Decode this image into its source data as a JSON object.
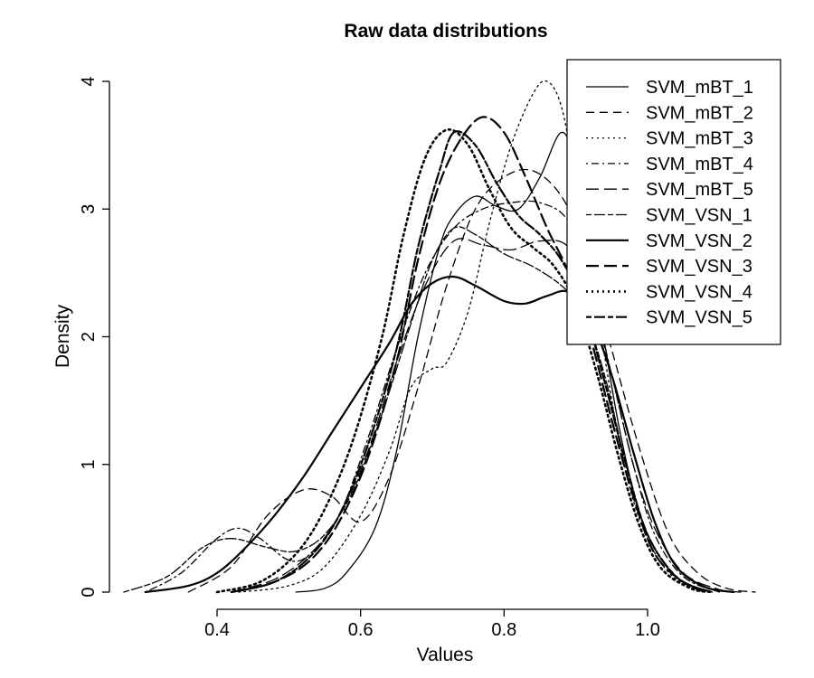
{
  "chart_data": {
    "type": "line",
    "title": "Raw data distributions",
    "xlabel": "Values",
    "ylabel": "Density",
    "xlim": [
      0.25,
      1.15
    ],
    "ylim": [
      0,
      4
    ],
    "x_ticks": [
      0.4,
      0.6,
      0.8,
      1.0
    ],
    "x_tick_labels": [
      "0.4",
      "0.6",
      "0.8",
      "1.0"
    ],
    "y_ticks": [
      0,
      1,
      2,
      3,
      4
    ],
    "y_tick_labels": [
      "0",
      "1",
      "2",
      "3",
      "4"
    ],
    "grid": false,
    "legend_position": "top-right",
    "series": [
      {
        "name": "SVM_mBT_1",
        "style": "solid",
        "width": 1.3,
        "points": [
          [
            0.51,
            0
          ],
          [
            0.55,
            0.03
          ],
          [
            0.58,
            0.15
          ],
          [
            0.62,
            0.5
          ],
          [
            0.65,
            1.1
          ],
          [
            0.68,
            2.0
          ],
          [
            0.71,
            2.7
          ],
          [
            0.73,
            2.95
          ],
          [
            0.76,
            3.1
          ],
          [
            0.79,
            3.02
          ],
          [
            0.82,
            3.0
          ],
          [
            0.85,
            3.25
          ],
          [
            0.88,
            3.6
          ],
          [
            0.9,
            3.3
          ],
          [
            0.93,
            2.3
          ],
          [
            0.96,
            1.3
          ],
          [
            0.99,
            0.6
          ],
          [
            1.02,
            0.25
          ],
          [
            1.05,
            0.08
          ],
          [
            1.09,
            0
          ]
        ]
      },
      {
        "name": "SVM_mBT_2",
        "style": "dashed",
        "width": 1.3,
        "points": [
          [
            0.36,
            0
          ],
          [
            0.42,
            0.2
          ],
          [
            0.47,
            0.6
          ],
          [
            0.52,
            0.8
          ],
          [
            0.56,
            0.75
          ],
          [
            0.6,
            0.55
          ],
          [
            0.64,
            0.9
          ],
          [
            0.68,
            1.6
          ],
          [
            0.72,
            2.4
          ],
          [
            0.76,
            3.0
          ],
          [
            0.8,
            3.25
          ],
          [
            0.84,
            3.3
          ],
          [
            0.88,
            3.1
          ],
          [
            0.91,
            2.7
          ],
          [
            0.95,
            1.9
          ],
          [
            0.99,
            1.1
          ],
          [
            1.03,
            0.45
          ],
          [
            1.07,
            0.15
          ],
          [
            1.11,
            0.03
          ],
          [
            1.15,
            0
          ]
        ]
      },
      {
        "name": "SVM_mBT_3",
        "style": "dotted",
        "width": 1.3,
        "points": [
          [
            0.43,
            0
          ],
          [
            0.5,
            0.05
          ],
          [
            0.55,
            0.2
          ],
          [
            0.6,
            0.6
          ],
          [
            0.64,
            1.1
          ],
          [
            0.67,
            1.6
          ],
          [
            0.7,
            1.75
          ],
          [
            0.72,
            1.8
          ],
          [
            0.75,
            2.2
          ],
          [
            0.78,
            2.9
          ],
          [
            0.81,
            3.5
          ],
          [
            0.84,
            3.9
          ],
          [
            0.86,
            4.0
          ],
          [
            0.88,
            3.8
          ],
          [
            0.9,
            3.2
          ],
          [
            0.93,
            2.2
          ],
          [
            0.96,
            1.2
          ],
          [
            0.99,
            0.55
          ],
          [
            1.03,
            0.15
          ],
          [
            1.08,
            0
          ]
        ]
      },
      {
        "name": "SVM_mBT_4",
        "style": "dotdash",
        "width": 1.3,
        "points": [
          [
            0.3,
            0
          ],
          [
            0.35,
            0.15
          ],
          [
            0.4,
            0.42
          ],
          [
            0.43,
            0.5
          ],
          [
            0.46,
            0.42
          ],
          [
            0.5,
            0.25
          ],
          [
            0.53,
            0.3
          ],
          [
            0.57,
            0.6
          ],
          [
            0.61,
            1.2
          ],
          [
            0.65,
            1.9
          ],
          [
            0.69,
            2.5
          ],
          [
            0.73,
            2.85
          ],
          [
            0.77,
            3.0
          ],
          [
            0.81,
            3.05
          ],
          [
            0.85,
            3.05
          ],
          [
            0.89,
            2.9
          ],
          [
            0.92,
            2.4
          ],
          [
            0.95,
            1.7
          ],
          [
            0.98,
            1.0
          ],
          [
            1.01,
            0.45
          ],
          [
            1.05,
            0.12
          ],
          [
            1.1,
            0
          ]
        ]
      },
      {
        "name": "SVM_mBT_5",
        "style": "longdash",
        "width": 1.3,
        "points": [
          [
            0.42,
            0
          ],
          [
            0.48,
            0.1
          ],
          [
            0.53,
            0.3
          ],
          [
            0.57,
            0.6
          ],
          [
            0.61,
            1.1
          ],
          [
            0.65,
            1.8
          ],
          [
            0.69,
            2.4
          ],
          [
            0.73,
            2.75
          ],
          [
            0.77,
            2.72
          ],
          [
            0.81,
            2.68
          ],
          [
            0.85,
            2.75
          ],
          [
            0.89,
            2.7
          ],
          [
            0.92,
            2.3
          ],
          [
            0.95,
            1.7
          ],
          [
            0.98,
            1.0
          ],
          [
            1.01,
            0.5
          ],
          [
            1.05,
            0.15
          ],
          [
            1.1,
            0.02
          ],
          [
            1.13,
            0
          ]
        ]
      },
      {
        "name": "SVM_VSN_1",
        "style": "twodash",
        "width": 1.3,
        "points": [
          [
            0.27,
            0
          ],
          [
            0.33,
            0.12
          ],
          [
            0.38,
            0.35
          ],
          [
            0.42,
            0.42
          ],
          [
            0.47,
            0.35
          ],
          [
            0.51,
            0.32
          ],
          [
            0.55,
            0.45
          ],
          [
            0.59,
            0.8
          ],
          [
            0.63,
            1.4
          ],
          [
            0.67,
            2.1
          ],
          [
            0.7,
            2.6
          ],
          [
            0.73,
            2.85
          ],
          [
            0.76,
            2.8
          ],
          [
            0.8,
            2.65
          ],
          [
            0.84,
            2.55
          ],
          [
            0.88,
            2.4
          ],
          [
            0.91,
            2.2
          ],
          [
            0.94,
            1.7
          ],
          [
            0.97,
            1.0
          ],
          [
            1.0,
            0.45
          ],
          [
            1.04,
            0.12
          ],
          [
            1.09,
            0
          ]
        ]
      },
      {
        "name": "SVM_VSN_2",
        "style": "solid",
        "width": 2.2,
        "points": [
          [
            0.3,
            0
          ],
          [
            0.36,
            0.05
          ],
          [
            0.4,
            0.15
          ],
          [
            0.44,
            0.35
          ],
          [
            0.48,
            0.6
          ],
          [
            0.52,
            0.9
          ],
          [
            0.56,
            1.25
          ],
          [
            0.6,
            1.6
          ],
          [
            0.64,
            1.95
          ],
          [
            0.67,
            2.25
          ],
          [
            0.7,
            2.42
          ],
          [
            0.73,
            2.47
          ],
          [
            0.76,
            2.4
          ],
          [
            0.8,
            2.28
          ],
          [
            0.83,
            2.26
          ],
          [
            0.86,
            2.32
          ],
          [
            0.89,
            2.35
          ],
          [
            0.92,
            2.15
          ],
          [
            0.95,
            1.7
          ],
          [
            0.98,
            1.1
          ],
          [
            1.01,
            0.55
          ],
          [
            1.04,
            0.2
          ],
          [
            1.08,
            0.04
          ],
          [
            1.12,
            0
          ]
        ]
      },
      {
        "name": "SVM_VSN_3",
        "style": "longdash",
        "width": 2.2,
        "points": [
          [
            0.42,
            0
          ],
          [
            0.48,
            0.08
          ],
          [
            0.53,
            0.25
          ],
          [
            0.57,
            0.55
          ],
          [
            0.61,
            1.05
          ],
          [
            0.65,
            1.8
          ],
          [
            0.68,
            2.6
          ],
          [
            0.71,
            3.2
          ],
          [
            0.74,
            3.55
          ],
          [
            0.77,
            3.72
          ],
          [
            0.8,
            3.6
          ],
          [
            0.83,
            3.25
          ],
          [
            0.86,
            2.85
          ],
          [
            0.89,
            2.5
          ],
          [
            0.92,
            2.0
          ],
          [
            0.95,
            1.35
          ],
          [
            0.98,
            0.75
          ],
          [
            1.01,
            0.3
          ],
          [
            1.05,
            0.08
          ],
          [
            1.09,
            0
          ]
        ]
      },
      {
        "name": "SVM_VSN_4",
        "style": "dotted",
        "width": 2.6,
        "points": [
          [
            0.4,
            0
          ],
          [
            0.46,
            0.08
          ],
          [
            0.51,
            0.3
          ],
          [
            0.55,
            0.65
          ],
          [
            0.59,
            1.2
          ],
          [
            0.63,
            2.0
          ],
          [
            0.66,
            2.8
          ],
          [
            0.69,
            3.4
          ],
          [
            0.72,
            3.62
          ],
          [
            0.75,
            3.5
          ],
          [
            0.78,
            3.15
          ],
          [
            0.81,
            2.85
          ],
          [
            0.84,
            2.7
          ],
          [
            0.87,
            2.55
          ],
          [
            0.9,
            2.25
          ],
          [
            0.93,
            1.7
          ],
          [
            0.96,
            1.05
          ],
          [
            0.99,
            0.5
          ],
          [
            1.02,
            0.18
          ],
          [
            1.06,
            0.03
          ],
          [
            1.09,
            0
          ]
        ]
      },
      {
        "name": "SVM_VSN_5",
        "style": "twodash",
        "width": 2.2,
        "points": [
          [
            0.42,
            0
          ],
          [
            0.48,
            0.08
          ],
          [
            0.53,
            0.28
          ],
          [
            0.57,
            0.6
          ],
          [
            0.61,
            1.15
          ],
          [
            0.65,
            1.9
          ],
          [
            0.68,
            2.7
          ],
          [
            0.71,
            3.3
          ],
          [
            0.73,
            3.6
          ],
          [
            0.76,
            3.5
          ],
          [
            0.79,
            3.2
          ],
          [
            0.82,
            2.95
          ],
          [
            0.85,
            2.8
          ],
          [
            0.88,
            2.6
          ],
          [
            0.91,
            2.25
          ],
          [
            0.94,
            1.65
          ],
          [
            0.97,
            1.0
          ],
          [
            1.0,
            0.45
          ],
          [
            1.04,
            0.12
          ],
          [
            1.08,
            0
          ]
        ]
      }
    ]
  }
}
